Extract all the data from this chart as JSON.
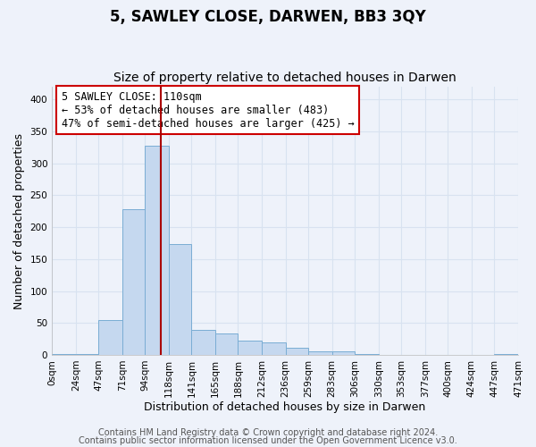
{
  "title": "5, SAWLEY CLOSE, DARWEN, BB3 3QY",
  "subtitle": "Size of property relative to detached houses in Darwen",
  "xlabel": "Distribution of detached houses by size in Darwen",
  "ylabel": "Number of detached properties",
  "bar_color": "#c5d8ef",
  "bar_edge_color": "#7aadd4",
  "background_color": "#eef2fa",
  "grid_color": "#d8e2f0",
  "bin_edges": [
    0,
    24,
    47,
    71,
    94,
    118,
    141,
    165,
    188,
    212,
    236,
    259,
    283,
    306,
    330,
    353,
    377,
    400,
    424,
    447,
    471
  ],
  "bin_labels": [
    "0sqm",
    "24sqm",
    "47sqm",
    "71sqm",
    "94sqm",
    "118sqm",
    "141sqm",
    "165sqm",
    "188sqm",
    "212sqm",
    "236sqm",
    "259sqm",
    "283sqm",
    "306sqm",
    "330sqm",
    "353sqm",
    "377sqm",
    "400sqm",
    "424sqm",
    "447sqm",
    "471sqm"
  ],
  "bar_heights": [
    1,
    2,
    55,
    228,
    328,
    173,
    39,
    34,
    22,
    20,
    11,
    5,
    5,
    2,
    0,
    0,
    0,
    0,
    0,
    2
  ],
  "ylim": [
    0,
    420
  ],
  "yticks": [
    0,
    50,
    100,
    150,
    200,
    250,
    300,
    350,
    400
  ],
  "property_line_x": 110,
  "property_line_color": "#aa0000",
  "annotation_text": "5 SAWLEY CLOSE: 110sqm\n← 53% of detached houses are smaller (483)\n47% of semi-detached houses are larger (425) →",
  "annotation_box_color": "#ffffff",
  "annotation_box_edge_color": "#cc0000",
  "footer_line1": "Contains HM Land Registry data © Crown copyright and database right 2024.",
  "footer_line2": "Contains public sector information licensed under the Open Government Licence v3.0.",
  "title_fontsize": 12,
  "subtitle_fontsize": 10,
  "axis_label_fontsize": 9,
  "tick_fontsize": 7.5,
  "annotation_fontsize": 8.5,
  "footer_fontsize": 7
}
